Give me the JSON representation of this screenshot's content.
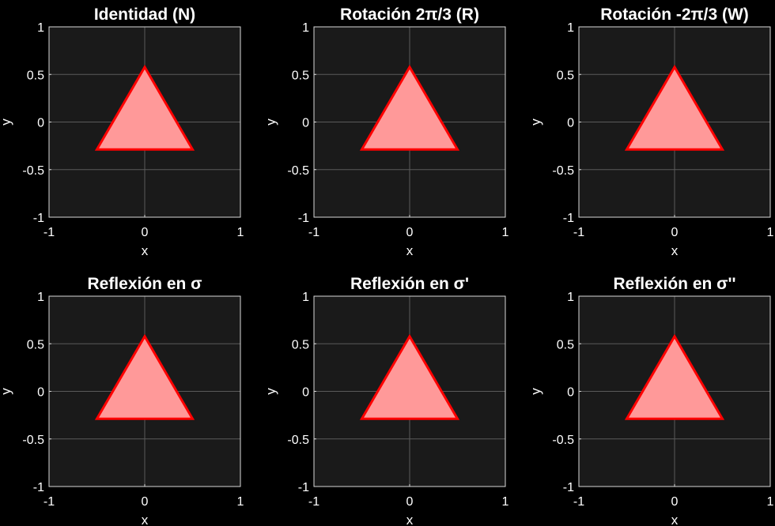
{
  "chart_data": [
    {
      "type": "area",
      "title": "Identidad (N)",
      "xlabel": "x",
      "ylabel": "y",
      "xlim": [
        -1,
        1
      ],
      "ylim": [
        -1,
        1
      ],
      "xticks": [
        "-1",
        "0",
        "1"
      ],
      "yticks": [
        "1",
        "0.5",
        "0",
        "-0.5",
        "-1"
      ],
      "grid": true,
      "triangle": {
        "x": [
          -0.5,
          0.5,
          0.0
        ],
        "y": [
          -0.2887,
          -0.2887,
          0.5774
        ]
      }
    },
    {
      "type": "area",
      "title": "Rotación  2π/3  (R)",
      "xlabel": "x",
      "ylabel": "y",
      "xlim": [
        -1,
        1
      ],
      "ylim": [
        -1,
        1
      ],
      "xticks": [
        "-1",
        "0",
        "1"
      ],
      "yticks": [
        "1",
        "0.5",
        "0",
        "-0.5",
        "-1"
      ],
      "grid": true,
      "triangle": {
        "x": [
          -0.5,
          0.5,
          0.0
        ],
        "y": [
          -0.2887,
          -0.2887,
          0.5774
        ]
      }
    },
    {
      "type": "area",
      "title": "Rotación  -2π/3  (W)",
      "xlabel": "x",
      "ylabel": "y",
      "xlim": [
        -1,
        1
      ],
      "ylim": [
        -1,
        1
      ],
      "xticks": [
        "-1",
        "0",
        "1"
      ],
      "yticks": [
        "1",
        "0.5",
        "0",
        "-0.5",
        "-1"
      ],
      "grid": true,
      "triangle": {
        "x": [
          -0.5,
          0.5,
          0.0
        ],
        "y": [
          -0.2887,
          -0.2887,
          0.5774
        ]
      }
    },
    {
      "type": "area",
      "title": "Reflexión  en  σ",
      "xlabel": "x",
      "ylabel": "y",
      "xlim": [
        -1,
        1
      ],
      "ylim": [
        -1,
        1
      ],
      "xticks": [
        "-1",
        "0",
        "1"
      ],
      "yticks": [
        "1",
        "0.5",
        "0",
        "-0.5",
        "-1"
      ],
      "grid": true,
      "triangle": {
        "x": [
          -0.5,
          0.5,
          0.0
        ],
        "y": [
          -0.2887,
          -0.2887,
          0.5774
        ]
      }
    },
    {
      "type": "area",
      "title": "Reflexión  en  σ'",
      "xlabel": "x",
      "ylabel": "y",
      "xlim": [
        -1,
        1
      ],
      "ylim": [
        -1,
        1
      ],
      "xticks": [
        "-1",
        "0",
        "1"
      ],
      "yticks": [
        "1",
        "0.5",
        "0",
        "-0.5",
        "-1"
      ],
      "grid": true,
      "triangle": {
        "x": [
          -0.5,
          0.5,
          0.0
        ],
        "y": [
          -0.2887,
          -0.2887,
          0.5774
        ]
      }
    },
    {
      "type": "area",
      "title": "Reflexión  en  σ''",
      "xlabel": "x",
      "ylabel": "y",
      "xlim": [
        -1,
        1
      ],
      "ylim": [
        -1,
        1
      ],
      "xticks": [
        "-1",
        "0",
        "1"
      ],
      "yticks": [
        "1",
        "0.5",
        "0",
        "-0.5",
        "-1"
      ],
      "grid": true,
      "triangle": {
        "x": [
          -0.5,
          0.5,
          0.0
        ],
        "y": [
          -0.2887,
          -0.2887,
          0.5774
        ]
      }
    }
  ],
  "colors": {
    "figure_bg": "#000000",
    "axes_bg": "#1a1a1a",
    "axes_edge": "#d9d9d9",
    "grid": "#5a5a5a",
    "text": "#ffffff",
    "triangle_fill": "#ff9999",
    "triangle_edge": "#ff0000"
  }
}
